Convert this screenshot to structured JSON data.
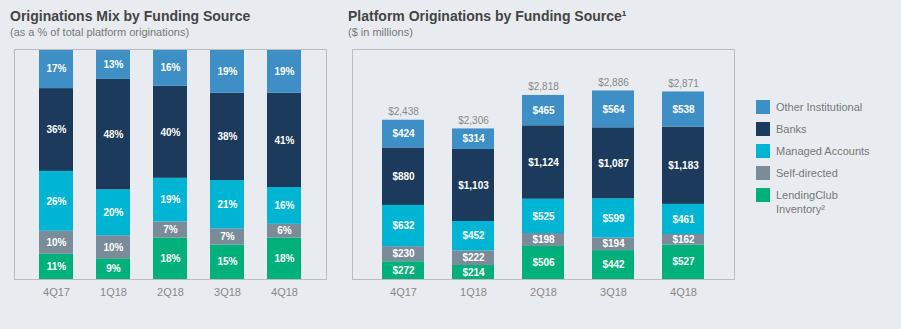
{
  "chart_data": [
    {
      "type": "bar",
      "stacked": true,
      "title": "Originations Mix by Funding Source",
      "subtitle": "(as a % of total platform originations)",
      "categories": [
        "4Q17",
        "1Q18",
        "2Q18",
        "3Q18",
        "4Q18"
      ],
      "series": [
        {
          "name": "LendingClub\nInventory²",
          "color": "#00b07a",
          "values": [
            11,
            9,
            18,
            15,
            18
          ],
          "value_labels": [
            "11%",
            "9%",
            "18%",
            "15%",
            "18%"
          ]
        },
        {
          "name": "Self-directed",
          "color": "#7a8c99",
          "values": [
            10,
            10,
            7,
            7,
            6
          ],
          "value_labels": [
            "10%",
            "10%",
            "7%",
            "7%",
            "6%"
          ]
        },
        {
          "name": "Managed Accounts",
          "color": "#00b4d4",
          "values": [
            26,
            20,
            19,
            21,
            16
          ],
          "value_labels": [
            "26%",
            "20%",
            "19%",
            "21%",
            "16%"
          ]
        },
        {
          "name": "Banks",
          "color": "#1b3a5c",
          "values": [
            36,
            48,
            40,
            38,
            41
          ],
          "value_labels": [
            "36%",
            "48%",
            "40%",
            "38%",
            "41%"
          ]
        },
        {
          "name": "Other Institutional",
          "color": "#3d8fc5",
          "values": [
            17,
            13,
            16,
            19,
            19
          ],
          "value_labels": [
            "17%",
            "13%",
            "16%",
            "19%",
            "19%"
          ]
        }
      ],
      "ylim": [
        0,
        100
      ],
      "tick_labels": "x",
      "grid": false,
      "data_labels": true
    },
    {
      "type": "bar",
      "stacked": true,
      "title": "Platform Originations by Funding Source¹",
      "subtitle": "($ in millions)",
      "categories": [
        "4Q17",
        "1Q18",
        "2Q18",
        "3Q18",
        "4Q18"
      ],
      "series": [
        {
          "name": "LendingClub\nInventory²",
          "color": "#00b07a",
          "values": [
            272,
            214,
            506,
            442,
            527
          ],
          "value_labels": [
            "$272",
            "$214",
            "$506",
            "$442",
            "$527"
          ]
        },
        {
          "name": "Self-directed",
          "color": "#7a8c99",
          "values": [
            230,
            222,
            198,
            194,
            162
          ],
          "value_labels": [
            "$230",
            "$222",
            "$198",
            "$194",
            "$162"
          ]
        },
        {
          "name": "Managed Accounts",
          "color": "#00b4d4",
          "values": [
            632,
            452,
            525,
            599,
            461
          ],
          "value_labels": [
            "$632",
            "$452",
            "$525",
            "$599",
            "$461"
          ]
        },
        {
          "name": "Banks",
          "color": "#1b3a5c",
          "values": [
            880,
            1103,
            1124,
            1087,
            1183
          ],
          "value_labels": [
            "$880",
            "$1,103",
            "$1,124",
            "$1,087",
            "$1,183"
          ]
        },
        {
          "name": "Other Institutional",
          "color": "#3d8fc5",
          "values": [
            424,
            314,
            465,
            564,
            538
          ],
          "value_labels": [
            "$424",
            "$314",
            "$465",
            "$564",
            "$538"
          ]
        }
      ],
      "totals": [
        2438,
        2306,
        2818,
        2886,
        2871
      ],
      "total_labels": [
        "$2,438",
        "$2,306",
        "$2,818",
        "$2,886",
        "$2,871"
      ],
      "ylim": [
        0,
        3520.92
      ],
      "tick_labels": "x",
      "grid": false,
      "data_labels": true,
      "legend": "right"
    }
  ]
}
